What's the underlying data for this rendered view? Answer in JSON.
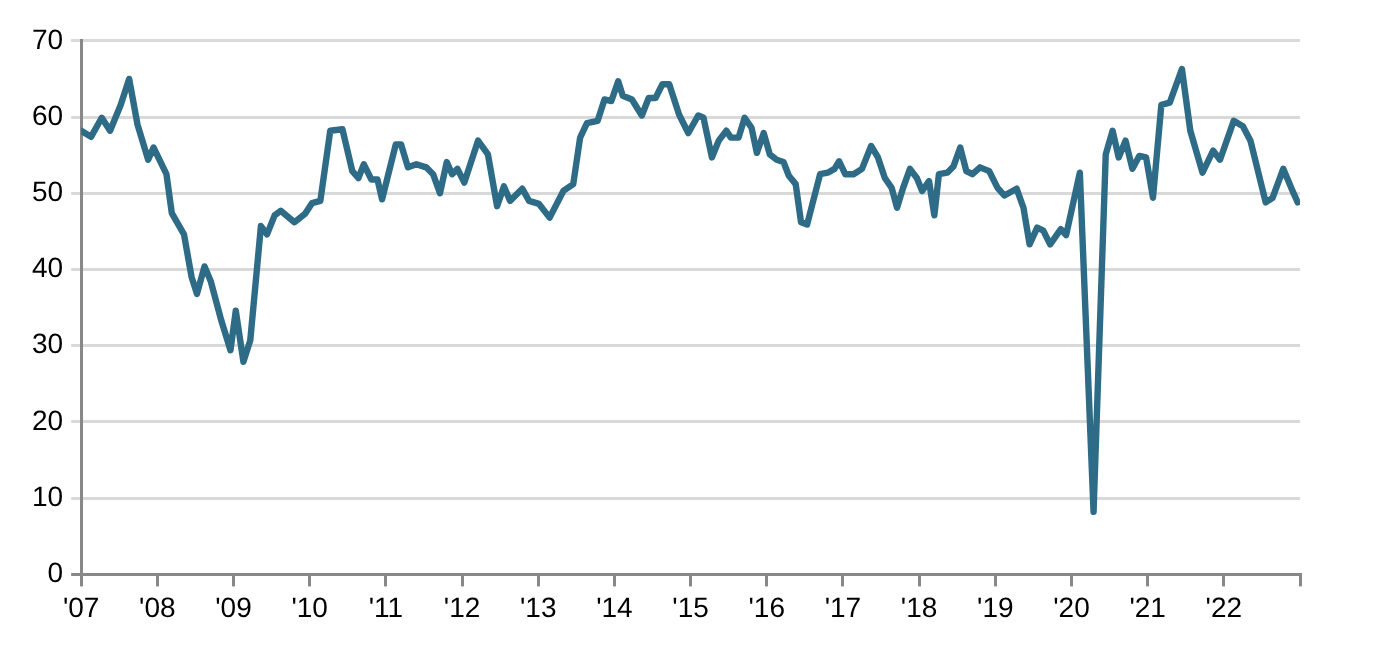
{
  "chart_data": {
    "type": "line",
    "xlim": [
      2007,
      2023
    ],
    "ylim": [
      0,
      70
    ],
    "xticks": [
      {
        "value": 2007,
        "label": "'07"
      },
      {
        "value": 2008,
        "label": "'08"
      },
      {
        "value": 2009,
        "label": "'09"
      },
      {
        "value": 2010,
        "label": "'10"
      },
      {
        "value": 2011,
        "label": "'11"
      },
      {
        "value": 2012,
        "label": "'12"
      },
      {
        "value": 2013,
        "label": "'13"
      },
      {
        "value": 2014,
        "label": "'14"
      },
      {
        "value": 2015,
        "label": "'15"
      },
      {
        "value": 2016,
        "label": "'16"
      },
      {
        "value": 2017,
        "label": "'17"
      },
      {
        "value": 2018,
        "label": "'18"
      },
      {
        "value": 2019,
        "label": "'19"
      },
      {
        "value": 2020,
        "label": "'20"
      },
      {
        "value": 2021,
        "label": "'21"
      },
      {
        "value": 2022,
        "label": "'22"
      },
      {
        "value": 2023,
        "label": null
      }
    ],
    "yticks": [
      0,
      10,
      20,
      30,
      40,
      50,
      60,
      70
    ],
    "grid": "y",
    "legend": false,
    "marker": "none",
    "line_style": "solid",
    "x": [
      2007.0,
      2007.13,
      2007.27,
      2007.38,
      2007.52,
      2007.63,
      2007.74,
      2007.88,
      2007.95,
      2008.12,
      2008.19,
      2008.35,
      2008.45,
      2008.52,
      2008.62,
      2008.7,
      2008.84,
      2008.96,
      2009.03,
      2009.13,
      2009.22,
      2009.36,
      2009.44,
      2009.54,
      2009.62,
      2009.8,
      2009.94,
      2010.03,
      2010.14,
      2010.27,
      2010.43,
      2010.56,
      2010.64,
      2010.71,
      2010.81,
      2010.89,
      2010.95,
      2011.13,
      2011.2,
      2011.29,
      2011.4,
      2011.53,
      2011.62,
      2011.71,
      2011.8,
      2011.87,
      2011.94,
      2012.03,
      2012.21,
      2012.34,
      2012.46,
      2012.55,
      2012.63,
      2012.79,
      2012.88,
      2013.01,
      2013.15,
      2013.33,
      2013.46,
      2013.55,
      2013.64,
      2013.78,
      2013.87,
      2013.96,
      2014.05,
      2014.11,
      2014.23,
      2014.36,
      2014.45,
      2014.54,
      2014.63,
      2014.72,
      2014.85,
      2014.97,
      2015.1,
      2015.17,
      2015.28,
      2015.37,
      2015.47,
      2015.53,
      2015.63,
      2015.71,
      2015.8,
      2015.87,
      2015.96,
      2016.04,
      2016.13,
      2016.22,
      2016.29,
      2016.38,
      2016.45,
      2016.53,
      2016.7,
      2016.8,
      2016.89,
      2016.95,
      2017.03,
      2017.14,
      2017.25,
      2017.37,
      2017.46,
      2017.55,
      2017.64,
      2017.71,
      2017.79,
      2017.88,
      2017.97,
      2018.04,
      2018.13,
      2018.2,
      2018.26,
      2018.37,
      2018.45,
      2018.54,
      2018.62,
      2018.7,
      2018.8,
      2018.92,
      2019.03,
      2019.12,
      2019.28,
      2019.37,
      2019.45,
      2019.55,
      2019.63,
      2019.72,
      2019.86,
      2019.93,
      2020.11,
      2020.29,
      2020.45,
      2020.54,
      2020.62,
      2020.71,
      2020.8,
      2020.89,
      2020.98,
      2021.07,
      2021.18,
      2021.29,
      2021.45,
      2021.56,
      2021.72,
      2021.86,
      2021.95,
      2022.13,
      2022.25,
      2022.35,
      2022.55,
      2022.64,
      2022.78,
      2022.89,
      2022.97
    ],
    "series": [
      {
        "color": "#2e6b86",
        "values": [
          58.2,
          57.4,
          59.9,
          58.2,
          61.6,
          65.0,
          59.0,
          54.4,
          56.0,
          52.5,
          47.4,
          44.6,
          39.0,
          36.8,
          40.4,
          38.5,
          33.3,
          29.4,
          34.6,
          27.9,
          30.7,
          45.7,
          44.6,
          47.1,
          47.7,
          46.2,
          47.3,
          48.7,
          49.0,
          58.2,
          58.4,
          52.9,
          52.0,
          53.8,
          51.8,
          51.8,
          49.2,
          56.4,
          56.4,
          53.4,
          53.8,
          53.4,
          52.5,
          50.0,
          54.1,
          52.5,
          53.2,
          51.4,
          56.9,
          55.1,
          48.3,
          50.9,
          49.0,
          50.6,
          49.0,
          48.6,
          46.8,
          50.3,
          51.2,
          57.3,
          59.2,
          59.5,
          62.3,
          62.1,
          64.7,
          62.8,
          62.3,
          60.2,
          62.5,
          62.5,
          64.3,
          64.3,
          60.3,
          57.9,
          60.2,
          59.9,
          54.7,
          56.9,
          58.2,
          57.3,
          57.3,
          59.9,
          58.6,
          55.3,
          57.9,
          55.1,
          54.4,
          54.1,
          52.3,
          51.2,
          46.2,
          45.9,
          52.5,
          52.7,
          53.2,
          54.2,
          52.5,
          52.5,
          53.2,
          56.2,
          54.7,
          52.0,
          50.7,
          48.1,
          50.7,
          53.2,
          52.0,
          50.3,
          51.6,
          47.1,
          52.5,
          52.7,
          53.5,
          56.0,
          52.9,
          52.5,
          53.4,
          52.9,
          50.7,
          49.7,
          50.6,
          48.1,
          43.3,
          45.5,
          45.1,
          43.3,
          45.3,
          44.5,
          52.7,
          8.2,
          55.1,
          58.2,
          54.7,
          56.9,
          53.2,
          54.9,
          54.7,
          49.4,
          61.6,
          61.9,
          66.3,
          58.2,
          52.7,
          55.6,
          54.4,
          59.5,
          58.8,
          56.9,
          48.8,
          49.4,
          53.2,
          50.6,
          48.8
        ]
      }
    ]
  }
}
